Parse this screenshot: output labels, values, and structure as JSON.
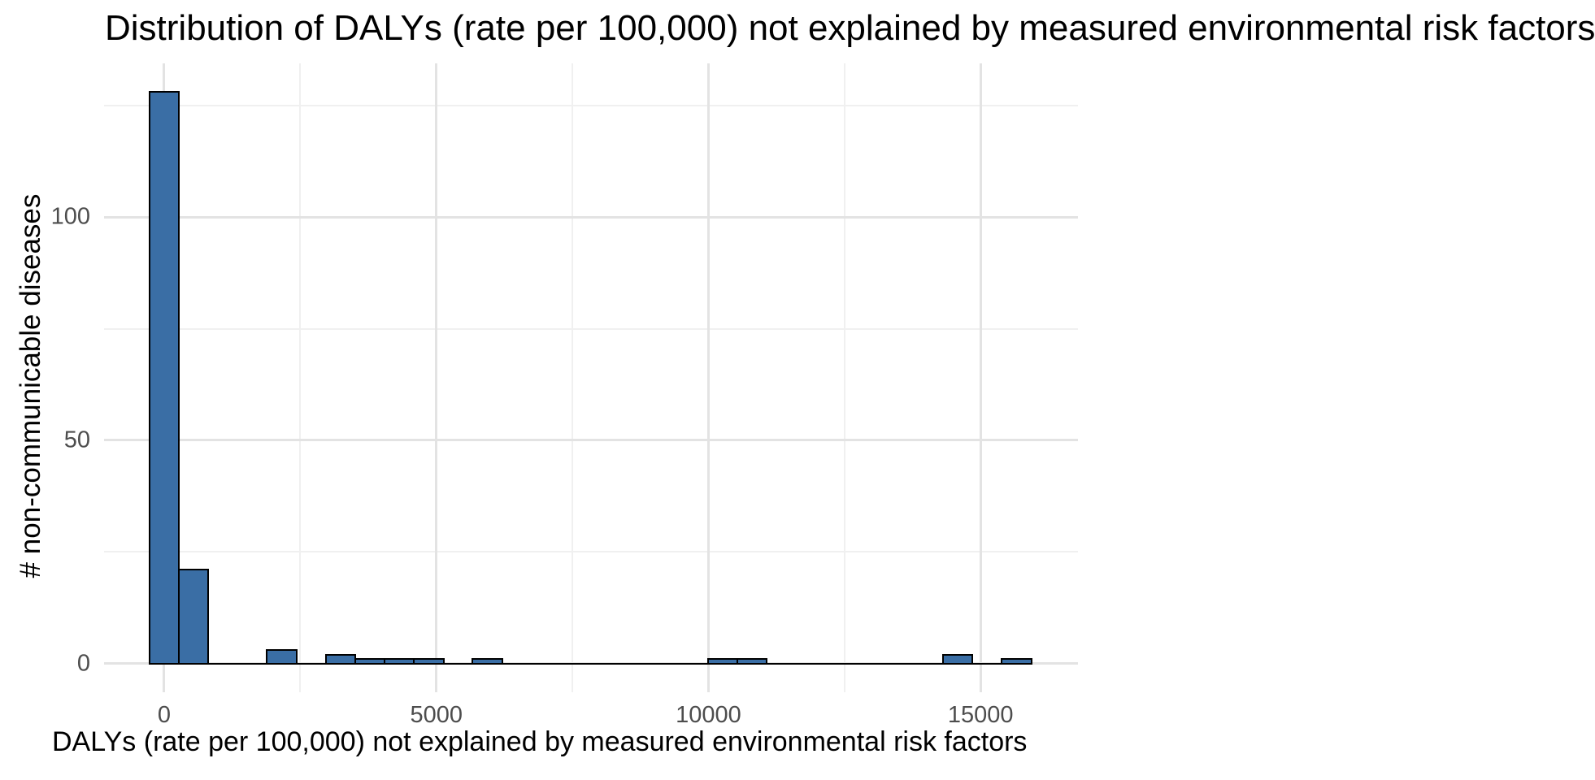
{
  "chart_data": {
    "type": "bar",
    "subtype": "histogram",
    "title": "Distribution of DALYs (rate per 100,000) not explained by measured environmental risk factors",
    "xlabel": "DALYs (rate per 100,000) not explained by measured environmental risk factors",
    "ylabel": "# non-communicable diseases",
    "binwidth": 540,
    "bin_centers": [
      0,
      540,
      1080,
      1620,
      2160,
      2700,
      3240,
      3780,
      4320,
      4860,
      5400,
      5940,
      6480,
      7020,
      7560,
      8100,
      8640,
      9180,
      9720,
      10260,
      10800,
      11340,
      11880,
      12420,
      12960,
      13500,
      14040,
      14580,
      15120,
      15660
    ],
    "counts": [
      128,
      21,
      0,
      0,
      3,
      0,
      2,
      1,
      1,
      1,
      0,
      1,
      0,
      0,
      0,
      0,
      0,
      0,
      0,
      1,
      1,
      0,
      0,
      0,
      0,
      0,
      0,
      2,
      0,
      1
    ],
    "x_ticks": [
      0,
      5000,
      10000,
      15000
    ],
    "y_ticks": [
      0,
      50,
      100
    ],
    "x_minor_ticks": [
      2500,
      7500,
      12500
    ],
    "y_minor_ticks": [
      25,
      75,
      125
    ],
    "xlim": [
      -1105,
      16790
    ],
    "ylim": [
      -6.4,
      134.4
    ],
    "grid": true,
    "legend": "none",
    "colors": {
      "bar_fill": "#3A6EA5",
      "bar_stroke": "#000000",
      "grid_major": "#E3E3E3",
      "grid_minor": "#F0F0F0",
      "tick_label": "#4D4D4D",
      "text": "#000000",
      "background": "#FFFFFF"
    }
  }
}
